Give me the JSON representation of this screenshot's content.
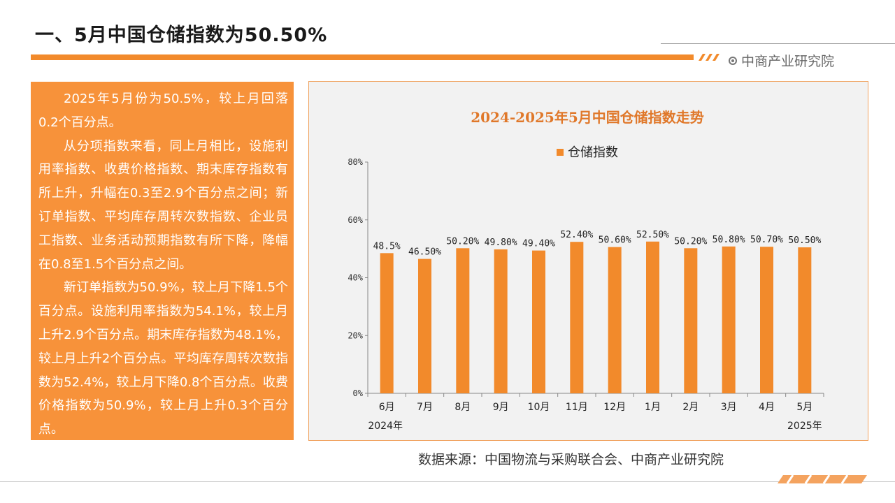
{
  "slide": {
    "title": "一、5月中国仓储指数为50.50%",
    "brand": "中商产业研究院",
    "source": "数据来源：中国物流与采购联合会、中商产业研究院",
    "paragraphs": [
      "2025年5月份为50.5%，较上月回落0.2个百分点。",
      "从分项指数来看，同上月相比，设施利用率指数、收费价格指数、期末库存指数有所上升，升幅在0.3至2.9个百分点之间；新订单指数、平均库存周转次数指数、企业员工指数、业务活动预期指数有所下降，降幅在0.8至1.5个百分点之间。",
      "新订单指数为50.9%，较上月下降1.5个百分点。设施利用率指数为54.1%，较上月上升2.9个百分点。期末库存指数为48.1%，较上月上升2个百分点。平均库存周转次数指数为52.4%，较上月下降0.8个百分点。收费价格指数为50.9%，较上月上升0.3个百分点。"
    ]
  },
  "colors": {
    "accent": "#f28a2b",
    "bar": "#f28a2b",
    "panel": "#f7923a",
    "chart_title": "#e0782a"
  },
  "chart_data": {
    "type": "bar",
    "title": "2024-2025年5月中国仓储指数走势",
    "legend_position": "top",
    "categories": [
      "6月",
      "7月",
      "8月",
      "9月",
      "10月",
      "11月",
      "12月",
      "1月",
      "2月",
      "3月",
      "4月",
      "5月"
    ],
    "year_labels": {
      "start": "2024年",
      "end": "2025年"
    },
    "series": [
      {
        "name": "仓储指数",
        "values": [
          48.5,
          46.5,
          50.2,
          49.8,
          49.4,
          52.4,
          50.6,
          52.5,
          50.2,
          50.8,
          50.7,
          50.5
        ],
        "labels": [
          "48.5%",
          "46.50%",
          "50.20%",
          "49.80%",
          "49.40%",
          "52.40%",
          "50.60%",
          "52.50%",
          "50.20%",
          "50.80%",
          "50.70%",
          "50.50%"
        ]
      }
    ],
    "ylim": [
      0,
      80
    ],
    "yticks": [
      0,
      20,
      40,
      60,
      80
    ],
    "ytick_labels": [
      "0%",
      "20%",
      "40%",
      "60%",
      "80%"
    ],
    "grid": false
  }
}
